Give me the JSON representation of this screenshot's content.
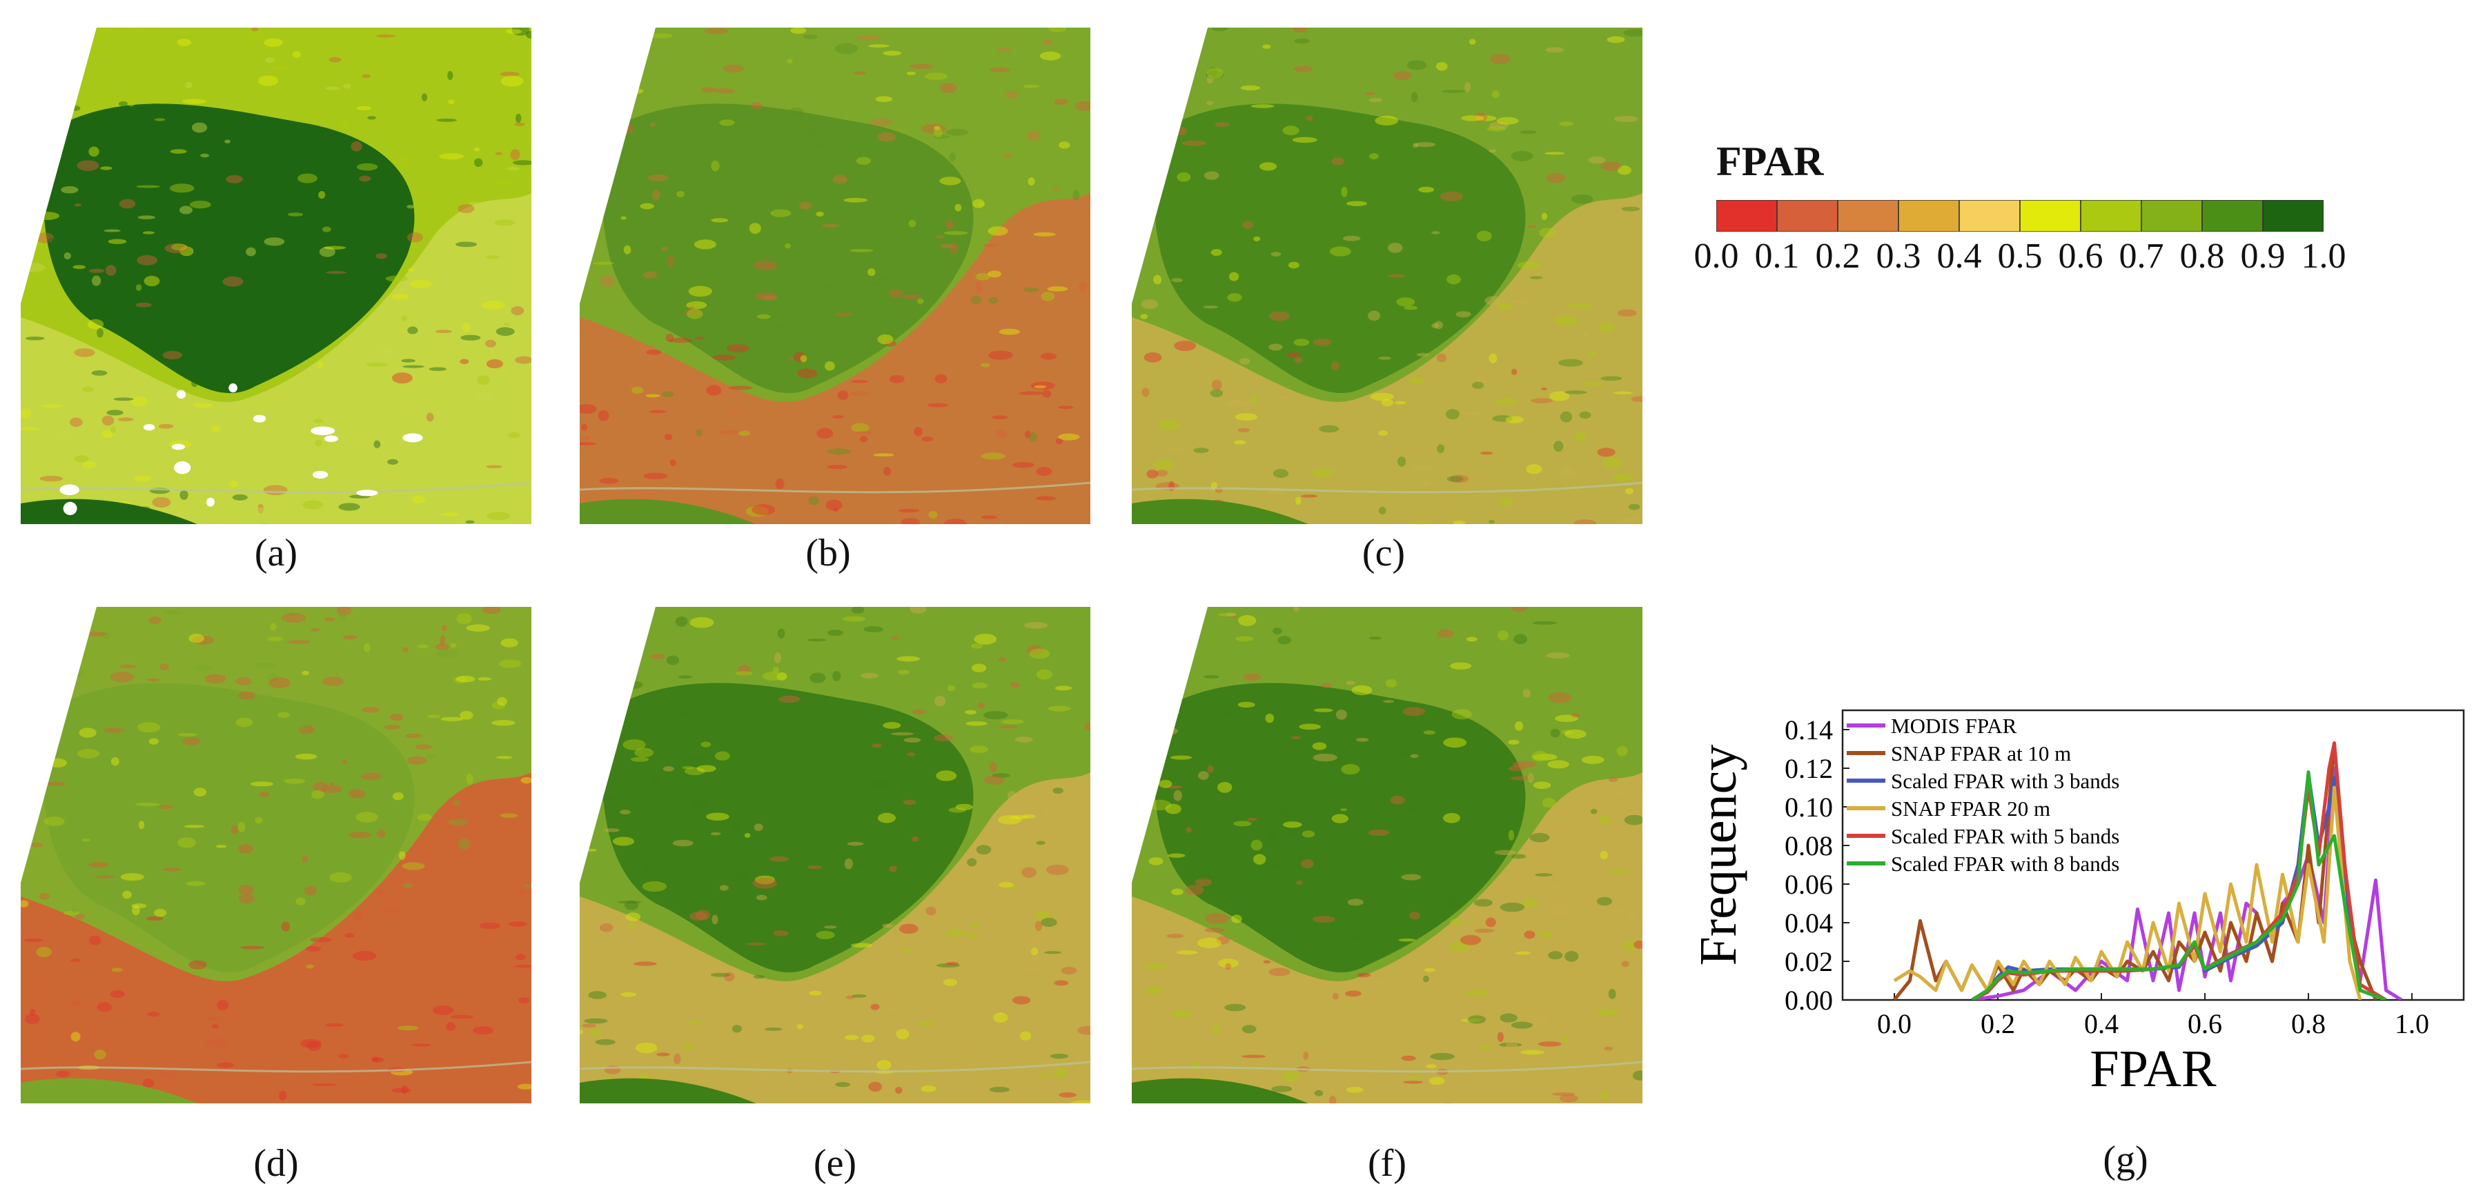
{
  "panels": [
    {
      "id": "a",
      "caption": "(a)",
      "style": "modis"
    },
    {
      "id": "b",
      "caption": "(b)",
      "style": "snap10"
    },
    {
      "id": "c",
      "caption": "(c)",
      "style": "scaled3"
    },
    {
      "id": "d",
      "caption": "(d)",
      "style": "snap20"
    },
    {
      "id": "e",
      "caption": "(e)",
      "style": "scaled5"
    },
    {
      "id": "f",
      "caption": "(f)",
      "style": "scaled8"
    }
  ],
  "colorbar": {
    "title": "FPAR",
    "colors": [
      "#e2302a",
      "#d5603a",
      "#d7833e",
      "#dfab35",
      "#f6d05c",
      "#e2ea0c",
      "#abc910",
      "#83b117",
      "#4c8f16",
      "#1d6510"
    ],
    "ticks": [
      "0.0",
      "0.1",
      "0.2",
      "0.3",
      "0.4",
      "0.5",
      "0.6",
      "0.7",
      "0.8",
      "0.9",
      "1.0"
    ]
  },
  "chart_caption": "(g)",
  "chart_data": {
    "type": "line",
    "xlabel": "FPAR",
    "ylabel": "Frequency",
    "xlim": [
      -0.1,
      1.1
    ],
    "ylim": [
      0,
      0.15
    ],
    "xticks": [
      "0.0",
      "0.2",
      "0.4",
      "0.6",
      "0.8",
      "1.0"
    ],
    "yticks": [
      "0.00",
      "0.02",
      "0.04",
      "0.06",
      "0.08",
      "0.10",
      "0.12",
      "0.14"
    ],
    "legend_position": "top-left",
    "series": [
      {
        "name": "MODIS FPAR",
        "color": "#b23ee0",
        "x": [
          0.15,
          0.2,
          0.25,
          0.3,
          0.35,
          0.4,
          0.45,
          0.47,
          0.5,
          0.53,
          0.55,
          0.58,
          0.6,
          0.63,
          0.65,
          0.68,
          0.7,
          0.73,
          0.75,
          0.78,
          0.8,
          0.83,
          0.85,
          0.88,
          0.9,
          0.93,
          0.95,
          0.98
        ],
        "y": [
          0,
          0.002,
          0.005,
          0.015,
          0.005,
          0.02,
          0.01,
          0.047,
          0.01,
          0.045,
          0.005,
          0.045,
          0.012,
          0.045,
          0.01,
          0.05,
          0.045,
          0.02,
          0.05,
          0.06,
          0.075,
          0.04,
          0.12,
          0.045,
          0.01,
          0.062,
          0.005,
          0
        ]
      },
      {
        "name": "SNAP FPAR at 10 m",
        "color": "#a34f1c",
        "x": [
          0.0,
          0.03,
          0.05,
          0.08,
          0.1,
          0.13,
          0.15,
          0.18,
          0.2,
          0.23,
          0.25,
          0.28,
          0.3,
          0.33,
          0.35,
          0.38,
          0.4,
          0.43,
          0.45,
          0.48,
          0.5,
          0.53,
          0.55,
          0.58,
          0.6,
          0.63,
          0.65,
          0.68,
          0.7,
          0.73,
          0.75,
          0.78,
          0.8,
          0.82,
          0.85,
          0.88,
          0.9,
          0.93
        ],
        "y": [
          0,
          0.01,
          0.041,
          0.01,
          0.02,
          0.005,
          0.018,
          0.005,
          0.018,
          0.005,
          0.016,
          0.008,
          0.015,
          0.01,
          0.016,
          0.01,
          0.017,
          0.012,
          0.02,
          0.015,
          0.025,
          0.01,
          0.03,
          0.02,
          0.035,
          0.015,
          0.04,
          0.02,
          0.045,
          0.02,
          0.05,
          0.03,
          0.08,
          0.04,
          0.133,
          0.04,
          0.02,
          0
        ]
      },
      {
        "name": "Scaled FPAR with 3 bands",
        "color": "#4657c4",
        "x": [
          0.15,
          0.18,
          0.2,
          0.22,
          0.25,
          0.3,
          0.35,
          0.4,
          0.45,
          0.5,
          0.55,
          0.58,
          0.6,
          0.65,
          0.7,
          0.75,
          0.78,
          0.8,
          0.82,
          0.84,
          0.85,
          0.87,
          0.9,
          0.95
        ],
        "y": [
          0,
          0.005,
          0.012,
          0.017,
          0.015,
          0.016,
          0.016,
          0.016,
          0.016,
          0.016,
          0.017,
          0.03,
          0.015,
          0.022,
          0.028,
          0.04,
          0.07,
          0.117,
          0.08,
          0.1,
          0.115,
          0.06,
          0.005,
          0
        ]
      },
      {
        "name": "SNAP FPAR 20 m",
        "color": "#d8ae3e",
        "x": [
          0.0,
          0.03,
          0.05,
          0.08,
          0.1,
          0.13,
          0.15,
          0.18,
          0.2,
          0.23,
          0.25,
          0.28,
          0.3,
          0.33,
          0.35,
          0.38,
          0.4,
          0.43,
          0.45,
          0.48,
          0.5,
          0.53,
          0.55,
          0.58,
          0.6,
          0.63,
          0.65,
          0.68,
          0.7,
          0.73,
          0.75,
          0.78,
          0.8,
          0.83,
          0.85,
          0.88,
          0.9
        ],
        "y": [
          0.01,
          0.015,
          0.012,
          0.005,
          0.02,
          0.005,
          0.018,
          0.005,
          0.02,
          0.008,
          0.02,
          0.008,
          0.02,
          0.008,
          0.022,
          0.01,
          0.025,
          0.012,
          0.03,
          0.015,
          0.04,
          0.015,
          0.05,
          0.02,
          0.055,
          0.025,
          0.06,
          0.03,
          0.07,
          0.03,
          0.065,
          0.03,
          0.07,
          0.03,
          0.11,
          0.02,
          0
        ]
      },
      {
        "name": "Scaled FPAR with 5 bands",
        "color": "#d6403a",
        "x": [
          0.15,
          0.18,
          0.2,
          0.22,
          0.25,
          0.3,
          0.35,
          0.4,
          0.45,
          0.5,
          0.55,
          0.58,
          0.6,
          0.65,
          0.7,
          0.75,
          0.78,
          0.8,
          0.82,
          0.84,
          0.85,
          0.87,
          0.9,
          0.95
        ],
        "y": [
          0,
          0.004,
          0.01,
          0.014,
          0.013,
          0.015,
          0.015,
          0.015,
          0.015,
          0.016,
          0.018,
          0.028,
          0.016,
          0.024,
          0.03,
          0.045,
          0.065,
          0.11,
          0.075,
          0.12,
          0.133,
          0.07,
          0.008,
          0
        ]
      },
      {
        "name": "Scaled FPAR with 8 bands",
        "color": "#2bb02b",
        "x": [
          0.15,
          0.18,
          0.2,
          0.22,
          0.25,
          0.3,
          0.35,
          0.4,
          0.45,
          0.5,
          0.55,
          0.58,
          0.6,
          0.65,
          0.7,
          0.75,
          0.78,
          0.8,
          0.82,
          0.84,
          0.85,
          0.87,
          0.9,
          0.95
        ],
        "y": [
          0,
          0.005,
          0.011,
          0.015,
          0.014,
          0.015,
          0.016,
          0.016,
          0.016,
          0.016,
          0.018,
          0.03,
          0.016,
          0.023,
          0.03,
          0.042,
          0.06,
          0.118,
          0.07,
          0.08,
          0.085,
          0.05,
          0.005,
          0
        ]
      }
    ]
  }
}
